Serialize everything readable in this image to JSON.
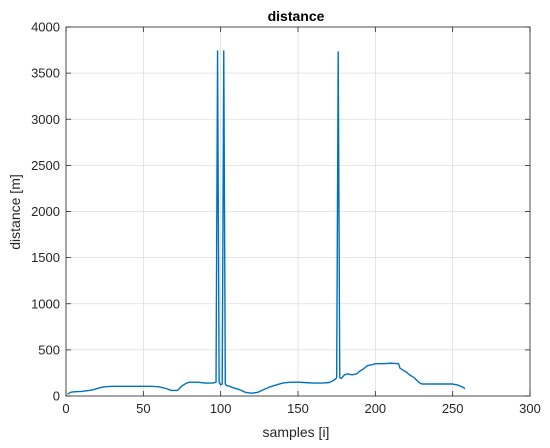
{
  "chart_data": {
    "type": "line",
    "title": "distance",
    "xlabel": "samples [i]",
    "ylabel": "distance [m]",
    "xlim": [
      0,
      300
    ],
    "ylim": [
      0,
      4000
    ],
    "xticks": [
      0,
      50,
      100,
      150,
      200,
      250,
      300
    ],
    "yticks": [
      0,
      500,
      1000,
      1500,
      2000,
      2500,
      3000,
      3500,
      4000
    ],
    "grid": true,
    "series": [
      {
        "color": "#0072BD",
        "x": [
          1,
          3,
          5,
          10,
          15,
          18,
          22,
          25,
          30,
          40,
          50,
          55,
          60,
          65,
          68,
          72,
          75,
          78,
          80,
          85,
          90,
          95,
          97,
          98,
          99,
          100,
          101,
          102,
          103,
          104,
          105,
          108,
          112,
          116,
          120,
          124,
          128,
          132,
          136,
          140,
          145,
          150,
          155,
          160,
          165,
          170,
          172,
          174,
          175,
          176,
          177,
          178,
          180,
          182,
          185,
          188,
          190,
          192,
          195,
          198,
          200,
          205,
          210,
          215,
          216,
          218,
          220,
          222,
          225,
          228,
          230,
          235,
          240,
          245,
          250,
          253,
          256,
          258
        ],
        "y": [
          20,
          40,
          45,
          50,
          60,
          70,
          90,
          100,
          105,
          105,
          105,
          105,
          100,
          80,
          60,
          60,
          110,
          140,
          150,
          150,
          140,
          140,
          150,
          3740,
          150,
          120,
          130,
          3740,
          130,
          110,
          110,
          90,
          70,
          40,
          30,
          40,
          70,
          100,
          120,
          140,
          150,
          150,
          145,
          140,
          140,
          145,
          160,
          180,
          200,
          3730,
          200,
          190,
          230,
          240,
          230,
          240,
          270,
          290,
          330,
          340,
          350,
          350,
          355,
          350,
          300,
          280,
          260,
          230,
          200,
          150,
          130,
          130,
          130,
          130,
          130,
          120,
          100,
          80
        ]
      }
    ]
  }
}
